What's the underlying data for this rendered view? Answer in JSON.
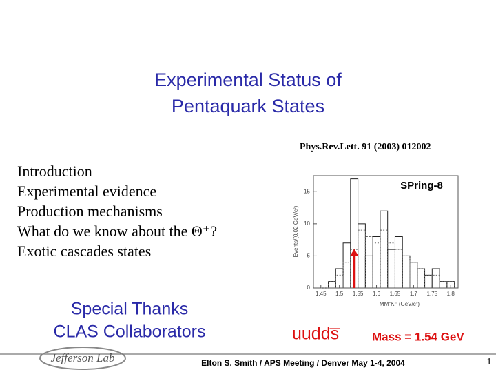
{
  "slide": {
    "title": [
      "Experimental Status of",
      "Pentaquark States"
    ],
    "reference": "Phys.Rev.Lett. 91 (2003) 012002",
    "outline": [
      "Introduction",
      "Experimental evidence",
      "Production mechanisms",
      "What do we know about the Θ⁺?",
      "Exotic cascades states"
    ],
    "thanks": [
      "Special Thanks",
      "CLAS Collaborators"
    ],
    "quark_content": "uudds̅",
    "mass": "Mass = 1.54 GeV",
    "logo": "Jefferson Lab",
    "footer": "Elton S. Smith /  APS Meeting / Denver May 1-4, 2004",
    "page_number": "1"
  },
  "chart_data": {
    "type": "histogram",
    "label": "SPring-8",
    "y_label": "Events/(0.02 GeV/c²)",
    "x_label": "MMᶜK⁻ (GeV/c²)",
    "bins": [
      1.45,
      1.47,
      1.49,
      1.51,
      1.53,
      1.55,
      1.57,
      1.59,
      1.61,
      1.63,
      1.65,
      1.67,
      1.69,
      1.71,
      1.73,
      1.75,
      1.77,
      1.79,
      1.81
    ],
    "series": [
      {
        "color": "#222222",
        "values": [
          0,
          1,
          3,
          7,
          17,
          10,
          5,
          8,
          12,
          6,
          8,
          5,
          4,
          3,
          2,
          3,
          1,
          1
        ]
      },
      {
        "color": "#666666",
        "dashed": true,
        "values": [
          0,
          1,
          2,
          4,
          6,
          9,
          8,
          7,
          9,
          7,
          6,
          5,
          4,
          3,
          2,
          2,
          1,
          1
        ]
      }
    ],
    "marker_x": 1.54,
    "marker_color": "#dd1111",
    "xlim": [
      1.43,
      1.82
    ],
    "ylim": [
      0,
      17.5
    ],
    "xticks": [
      1.45,
      1.5,
      1.55,
      1.6,
      1.65,
      1.7,
      1.75,
      1.8
    ],
    "yticks": [
      0,
      5,
      10,
      15
    ]
  }
}
